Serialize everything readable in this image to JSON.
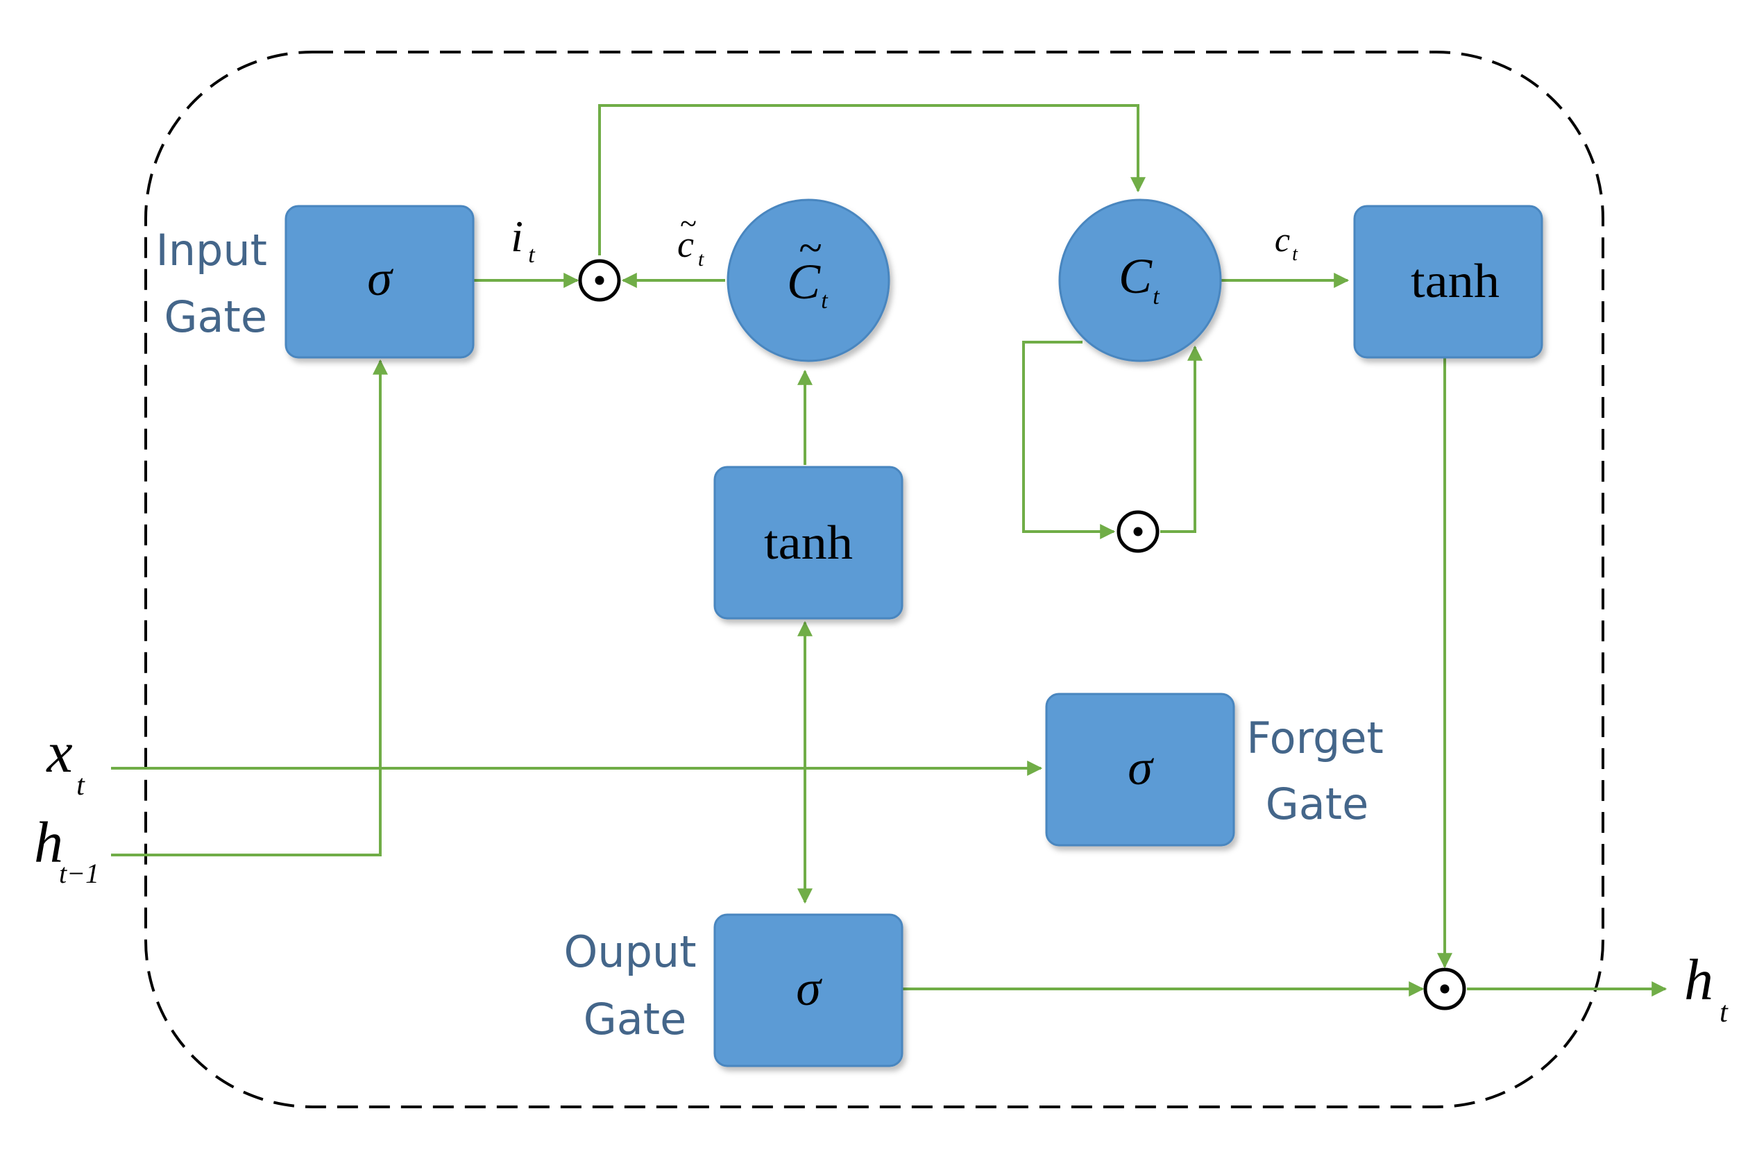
{
  "colors": {
    "box_fill": "#5B9BD5",
    "box_stroke": "#4A86BF",
    "arrow": "#70AD47",
    "label_text": "#44668A",
    "symbol_text": "#000000",
    "frame": "#000000"
  },
  "labels": {
    "input_gate_line1": "Input",
    "input_gate_line2": "Gate",
    "forget_gate_line1": "Forget",
    "forget_gate_line2": "Gate",
    "output_gate_line1": "Ouput",
    "output_gate_line2": "Gate"
  },
  "nodes": {
    "input_sigma": "σ",
    "forget_sigma": "σ",
    "output_sigma": "σ",
    "tanh_candidate": "tanh",
    "tanh_output": "tanh",
    "candidate_cell": {
      "base": "C",
      "accent": "~",
      "sub": "t"
    },
    "cell_state": {
      "base": "C",
      "sub": "t"
    },
    "hadamard_symbol": "⊙"
  },
  "signals": {
    "i_t": {
      "base": "i",
      "sub": "t"
    },
    "c_tilde_t": {
      "base": "c",
      "accent": "~",
      "sub": "t"
    },
    "c_t": {
      "base": "c",
      "sub": "t"
    },
    "x_t": {
      "base": "x",
      "sub": "t"
    },
    "h_t_minus_1": {
      "base": "h",
      "sub": "t−1"
    },
    "h_t": {
      "base": "h",
      "sub": "t"
    }
  }
}
